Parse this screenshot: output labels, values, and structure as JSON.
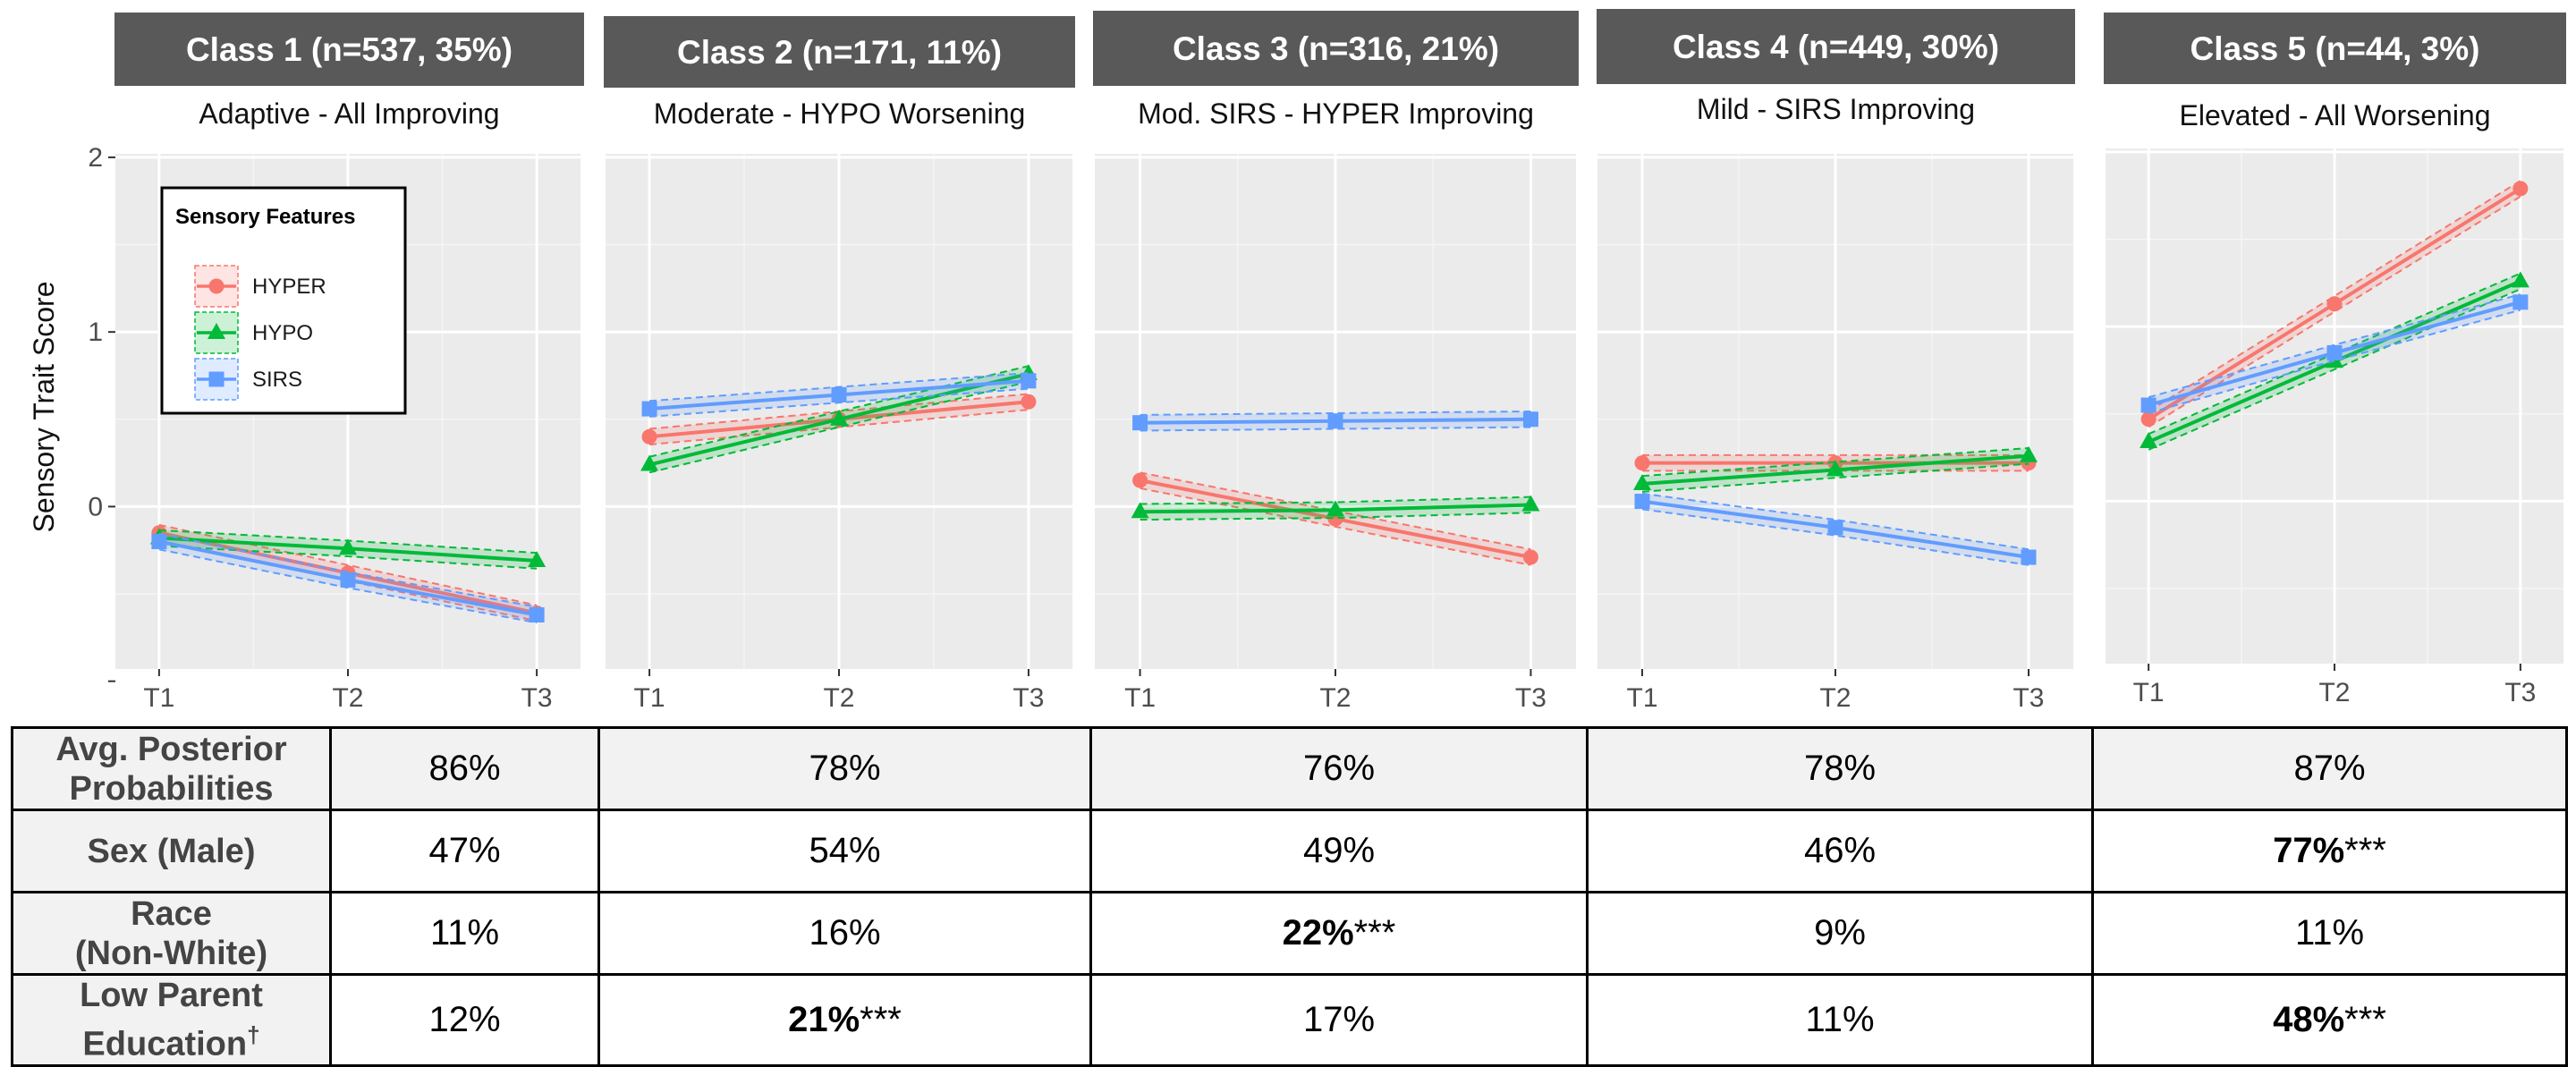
{
  "chart_data": {
    "type": "line",
    "y_axis": {
      "label": "Sensory Trait Score",
      "ticks": [
        -1,
        0,
        1,
        2
      ],
      "tick_labels": [
        "",
        "0",
        "1",
        "2"
      ],
      "ylim": [
        -0.93,
        2.02
      ],
      "grid": true
    },
    "x": [
      "T1",
      "T2",
      "T3"
    ],
    "legend": {
      "title": "Sensory Features",
      "placement": "inside top-left of first panel",
      "entries": [
        "HYPER",
        "HYPO",
        "SIRS"
      ]
    },
    "series_styles": [
      {
        "name": "HYPER",
        "color": "#F8766D",
        "marker": "circle"
      },
      {
        "name": "HYPO",
        "color": "#00BA38",
        "marker": "triangle"
      },
      {
        "name": "SIRS",
        "color": "#619CFF",
        "marker": "square"
      }
    ],
    "panels": [
      {
        "header": "Class 1 (n=537, 35%)",
        "subtitle": "Adaptive - All Improving",
        "series": [
          {
            "name": "HYPER",
            "values": [
              -0.15,
              -0.38,
              -0.61
            ]
          },
          {
            "name": "HYPO",
            "values": [
              -0.18,
              -0.24,
              -0.31
            ]
          },
          {
            "name": "SIRS",
            "values": [
              -0.2,
              -0.42,
              -0.62
            ]
          }
        ]
      },
      {
        "header": "Class 2 (n=171, 11%)",
        "subtitle": "Moderate - HYPO Worsening",
        "series": [
          {
            "name": "HYPER",
            "values": [
              0.4,
              0.5,
              0.6
            ]
          },
          {
            "name": "HYPO",
            "values": [
              0.24,
              0.5,
              0.76
            ]
          },
          {
            "name": "SIRS",
            "values": [
              0.56,
              0.64,
              0.72
            ]
          }
        ]
      },
      {
        "header": "Class 3 (n=316, 21%)",
        "subtitle": "Mod. SIRS - HYPER Improving",
        "series": [
          {
            "name": "HYPER",
            "values": [
              0.15,
              -0.07,
              -0.29
            ]
          },
          {
            "name": "HYPO",
            "values": [
              -0.03,
              -0.02,
              0.01
            ]
          },
          {
            "name": "SIRS",
            "values": [
              0.48,
              0.49,
              0.5
            ]
          }
        ]
      },
      {
        "header": "Class 4 (n=449, 30%)",
        "subtitle": "Mild - SIRS Improving",
        "series": [
          {
            "name": "HYPER",
            "values": [
              0.25,
              0.25,
              0.25
            ]
          },
          {
            "name": "HYPO",
            "values": [
              0.13,
              0.21,
              0.29
            ]
          },
          {
            "name": "SIRS",
            "values": [
              0.03,
              -0.12,
              -0.29
            ]
          }
        ]
      },
      {
        "header": "Class 5 (n=44, 3%)",
        "subtitle": "Elevated - All Worsening",
        "series": [
          {
            "name": "HYPER",
            "values": [
              0.47,
              1.13,
              1.79
            ]
          },
          {
            "name": "HYPO",
            "values": [
              0.34,
              0.8,
              1.26
            ]
          },
          {
            "name": "SIRS",
            "values": [
              0.55,
              0.85,
              1.14
            ]
          }
        ]
      }
    ]
  },
  "table": {
    "rows": [
      {
        "label": [
          "Avg. Posterior",
          "Probabilities"
        ],
        "cells": [
          {
            "v": "86%"
          },
          {
            "v": "78%"
          },
          {
            "v": "76%"
          },
          {
            "v": "78%"
          },
          {
            "v": "87%"
          }
        ]
      },
      {
        "label": [
          "Sex (Male)"
        ],
        "cells": [
          {
            "v": "47%"
          },
          {
            "v": "54%"
          },
          {
            "v": "49%"
          },
          {
            "v": "46%"
          },
          {
            "v": "77%",
            "bold": true,
            "sig": "***"
          }
        ]
      },
      {
        "label": [
          "Race",
          "(Non-White)"
        ],
        "cells": [
          {
            "v": "11%"
          },
          {
            "v": "16%"
          },
          {
            "v": "22%",
            "bold": true,
            "sig": "***"
          },
          {
            "v": "9%"
          },
          {
            "v": "11%"
          }
        ]
      },
      {
        "label": [
          "Low Parent",
          "Education"
        ],
        "label_sup": "†",
        "cells": [
          {
            "v": "12%"
          },
          {
            "v": "21%",
            "bold": true,
            "sig": "***"
          },
          {
            "v": "17%"
          },
          {
            "v": "11%"
          },
          {
            "v": "48%",
            "bold": true,
            "sig": "***"
          }
        ]
      }
    ]
  }
}
